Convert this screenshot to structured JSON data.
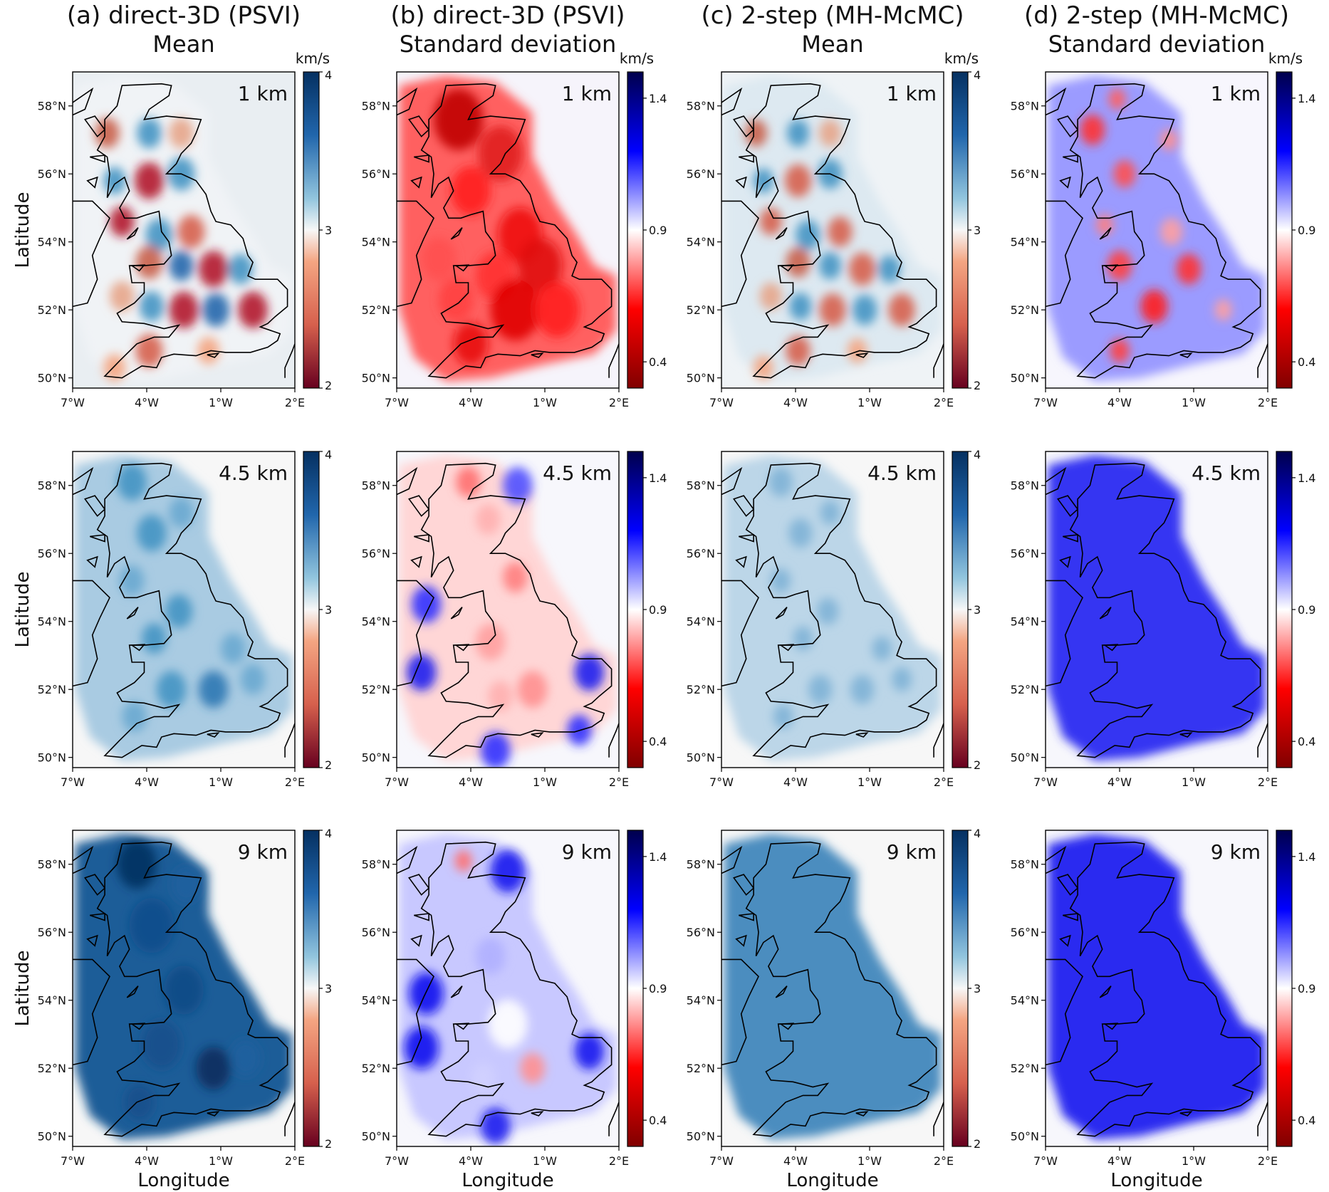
{
  "columns": [
    {
      "title": "(a) direct-3D (PSVI)",
      "subtitle": "Mean",
      "cmap": "RdBu"
    },
    {
      "title": "(b) direct-3D (PSVI)",
      "subtitle": "Standard deviation",
      "cmap": "seismic_r"
    },
    {
      "title": "(c) 2-step (MH-McMC)",
      "subtitle": "Mean",
      "cmap": "RdBu"
    },
    {
      "title": "(d) 2-step (MH-McMC)",
      "subtitle": "Standard deviation",
      "cmap": "seismic_r"
    }
  ],
  "rows": [
    {
      "depth": "1 km"
    },
    {
      "depth": "4.5 km"
    },
    {
      "depth": "9 km"
    }
  ],
  "colorbars": {
    "mean": {
      "unit": "km/s",
      "ticks": [
        "4",
        "3",
        "2"
      ],
      "range": [
        2,
        4
      ]
    },
    "std": {
      "unit": "km/s",
      "ticks": [
        "1.4",
        "0.9",
        "0.4"
      ],
      "range": [
        0.3,
        1.5
      ]
    }
  },
  "axes": {
    "xlabel": "Longitude",
    "ylabel": "Latitude",
    "xticks": [
      "7°W",
      "4°W",
      "1°W",
      "2°E"
    ],
    "yticks": [
      "58°N",
      "56°N",
      "54°N",
      "52°N",
      "50°N"
    ]
  },
  "chart_data": [
    {
      "type": "heatmap",
      "panel": "a1",
      "title": "(a) direct-3D (PSVI) Mean",
      "depth": "1 km",
      "unit": "km/s",
      "range": [
        2,
        4
      ],
      "description_values": {
        "background": 3.0,
        "min_approx": 2.2,
        "max_approx": 3.7
      }
    },
    {
      "type": "heatmap",
      "panel": "b1",
      "title": "(b) direct-3D (PSVI) Standard deviation",
      "depth": "1 km",
      "unit": "km/s",
      "range": [
        0.3,
        1.5
      ],
      "description_values": {
        "min_approx": 0.4,
        "max_approx": 0.9
      }
    },
    {
      "type": "heatmap",
      "panel": "c1",
      "title": "(c) 2-step (MH-McMC) Mean",
      "depth": "1 km",
      "unit": "km/s",
      "range": [
        2,
        4
      ],
      "description_values": {
        "min_approx": 2.5,
        "max_approx": 3.4
      }
    },
    {
      "type": "heatmap",
      "panel": "d1",
      "title": "(d) 2-step (MH-McMC) Standard deviation",
      "depth": "1 km",
      "unit": "km/s",
      "range": [
        0.3,
        1.5
      ],
      "description_values": {
        "min_approx": 0.6,
        "max_approx": 1.1
      }
    },
    {
      "type": "heatmap",
      "panel": "a2",
      "depth": "4.5 km",
      "unit": "km/s",
      "description_values": {
        "min_approx": 3.1,
        "max_approx": 3.5
      }
    },
    {
      "type": "heatmap",
      "panel": "b2",
      "depth": "4.5 km",
      "unit": "km/s",
      "description_values": {
        "min_approx": 0.75,
        "max_approx": 1.2
      }
    },
    {
      "type": "heatmap",
      "panel": "c2",
      "depth": "4.5 km",
      "unit": "km/s",
      "description_values": {
        "min_approx": 3.1,
        "max_approx": 3.4
      }
    },
    {
      "type": "heatmap",
      "panel": "d2",
      "depth": "4.5 km",
      "unit": "km/s",
      "description_values": {
        "min_approx": 1.2,
        "max_approx": 1.25
      }
    },
    {
      "type": "heatmap",
      "panel": "a3",
      "depth": "9 km",
      "unit": "km/s",
      "description_values": {
        "min_approx": 3.5,
        "max_approx": 3.8
      }
    },
    {
      "type": "heatmap",
      "panel": "b3",
      "depth": "9 km",
      "unit": "km/s",
      "description_values": {
        "min_approx": 0.85,
        "max_approx": 1.3
      }
    },
    {
      "type": "heatmap",
      "panel": "c3",
      "depth": "9 km",
      "unit": "km/s",
      "description_values": {
        "min_approx": 3.4,
        "max_approx": 3.5
      }
    },
    {
      "type": "heatmap",
      "panel": "d3",
      "depth": "9 km",
      "unit": "km/s",
      "description_values": {
        "min_approx": 1.25,
        "max_approx": 1.3
      }
    }
  ]
}
